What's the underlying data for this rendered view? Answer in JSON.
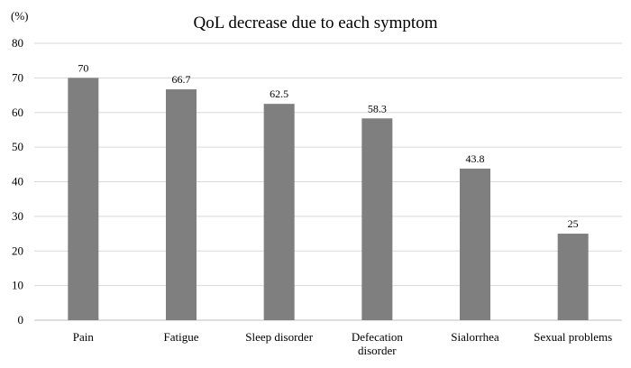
{
  "chart_data": {
    "type": "bar",
    "title": "QoL decrease due to each symptom",
    "ylabel": "(%)",
    "xlabel": "",
    "categories": [
      "Pain",
      "Fatigue",
      "Sleep disorder",
      "Defecation\ndisorder",
      "Sialorrhea",
      "Sexual problems"
    ],
    "values": [
      70,
      66.7,
      62.5,
      58.3,
      43.8,
      25
    ],
    "data_labels": [
      "70",
      "66.7",
      "62.5",
      "58.3",
      "43.8",
      "25"
    ],
    "ylim": [
      0,
      80
    ],
    "yticks": [
      0,
      10,
      20,
      30,
      40,
      50,
      60,
      70,
      80
    ],
    "grid": true,
    "bar_color": "#7f7f7f",
    "grid_color": "#d9d9d9",
    "axis_color": "#bfbfbf"
  }
}
